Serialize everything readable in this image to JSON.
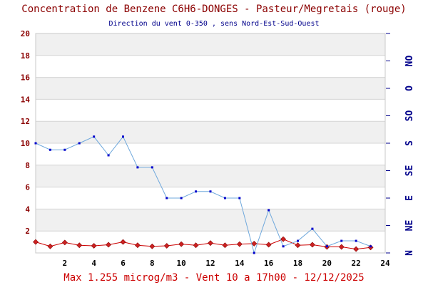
{
  "title": "Concentration de Benzene C6H6-DONGES - Pasteur/Megretais (rouge)",
  "subtitle": "Direction du vent 0-350 , sens Nord-Est-Sud-Ouest",
  "footer": "Max 1.255 microg/m3 - Vent 10  a 17h00 - 12/12/2025",
  "chart_data": {
    "type": "line",
    "title": "Concentration de Benzene C6H6-DONGES - Pasteur/Megretais (rouge)",
    "subtitle": "Direction du vent 0-350 , sens Nord-Est-Sud-Ouest",
    "xlim": [
      0,
      24
    ],
    "ylim": [
      0,
      20
    ],
    "x_ticks": [
      2,
      4,
      6,
      8,
      10,
      12,
      14,
      16,
      18,
      20,
      22,
      24
    ],
    "y_ticks": [
      2,
      4,
      6,
      8,
      10,
      12,
      14,
      16,
      18,
      20
    ],
    "right_axis_labels": [
      "N",
      "NE",
      "E",
      "SE",
      "S",
      "SO",
      "O",
      "NO"
    ],
    "grid": true,
    "x": [
      0,
      1,
      2,
      3,
      4,
      5,
      6,
      7,
      8,
      9,
      10,
      11,
      12,
      13,
      14,
      15,
      16,
      17,
      18,
      19,
      20,
      21,
      22,
      23
    ],
    "series": [
      {
        "color": "#cc0000",
        "marker_color": "#cc2222",
        "values": [
          1.0,
          0.6,
          0.95,
          0.7,
          0.65,
          0.75,
          1.0,
          0.7,
          0.6,
          0.65,
          0.8,
          0.7,
          0.9,
          0.7,
          0.8,
          0.85,
          0.75,
          1.255,
          0.7,
          0.75,
          0.55,
          0.55,
          0.35,
          0.5
        ]
      },
      {
        "color": "#6fa8dc",
        "marker_color": "#0000cc",
        "values": [
          10.0,
          9.4,
          9.4,
          10.0,
          10.6,
          8.9,
          10.6,
          7.8,
          7.8,
          5.0,
          5.0,
          5.6,
          5.6,
          5.0,
          5.0,
          0.0,
          3.9,
          0.6,
          1.1,
          2.2,
          0.6,
          1.1,
          1.1,
          0.6
        ]
      }
    ]
  }
}
